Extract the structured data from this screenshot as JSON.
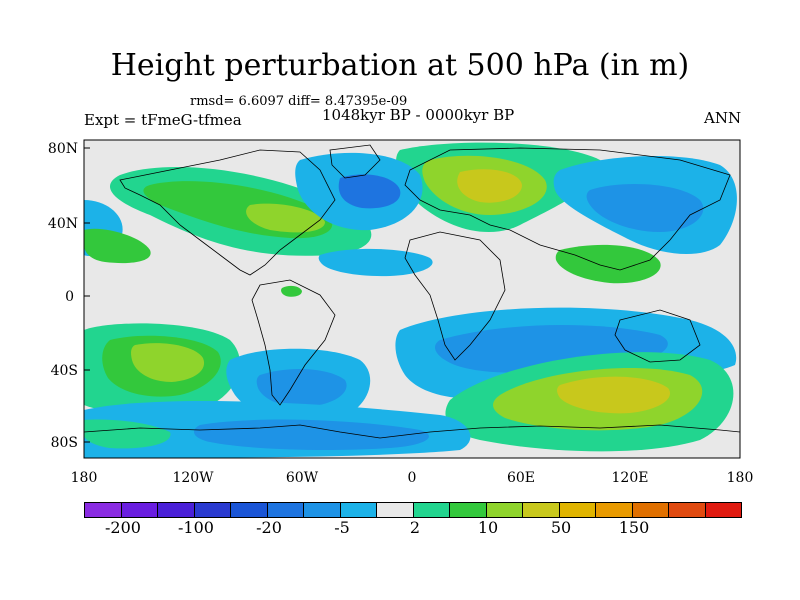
{
  "title": "Height perturbation at 500 hPa (in m)",
  "stats": "rmsd= 6.6097 diff= 8.47395e-09",
  "experiment": "Expt = tFmeG-tfmea",
  "period": "1048kyr BP - 0000kyr BP",
  "season": "ANN",
  "lat_ticks": [
    "80N",
    "40N",
    "0",
    "40S",
    "80S"
  ],
  "lon_ticks": [
    "180",
    "120W",
    "60W",
    "0",
    "60E",
    "120E",
    "180"
  ],
  "colorbar": {
    "colors": [
      "#8a2be2",
      "#6a1ee0",
      "#4a20d8",
      "#2a3ad0",
      "#1a55d6",
      "#1e74e0",
      "#1e93e6",
      "#1cb2e8",
      "#e8e8e8",
      "#22d58f",
      "#33c83c",
      "#8fd42c",
      "#c8c81c",
      "#e0b400",
      "#e89a00",
      "#e07000",
      "#e04a10",
      "#e01a10"
    ],
    "labels": [
      "-200",
      "-100",
      "-20",
      "-5",
      "2",
      "10",
      "50",
      "150"
    ]
  },
  "map_colors": {
    "neutral": "#e8e8e8",
    "pos1": "#22d58f",
    "pos2": "#33c83c",
    "pos3": "#8fd42c",
    "pos4": "#c8c81c",
    "neg1": "#1cb2e8",
    "neg2": "#1e93e6",
    "neg3": "#1e74e0",
    "neg4": "#1a55d6",
    "coast": "#000000"
  }
}
